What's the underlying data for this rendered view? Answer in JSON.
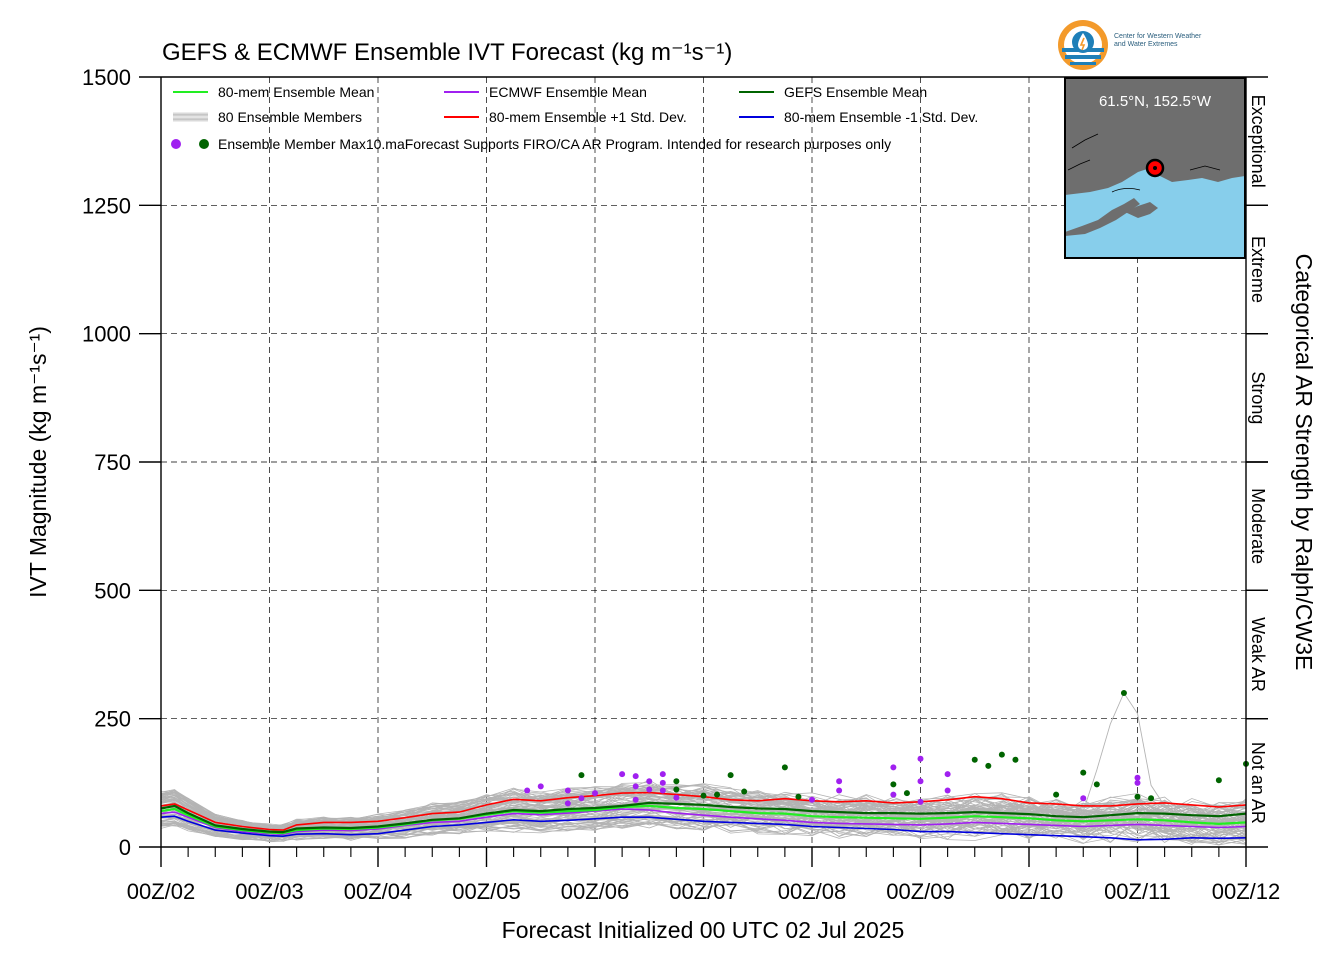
{
  "logo": {
    "line1": "Center for Western Weather",
    "line2": "and Water Extremes"
  },
  "inset": {
    "label": "61.5°N, 152.5°W",
    "land_color": "#6e6e6e",
    "ocean_color": "#87ceeb",
    "marker_color": "#ff0000"
  },
  "chart_data": {
    "type": "line",
    "title": "GEFS & ECMWF Ensemble IVT Forecast (kg m⁻¹s⁻¹)",
    "xlabel": "Forecast Initialized 00 UTC 02 Jul 2025",
    "ylabel": "IVT Magnitude (kg m⁻¹s⁻¹)",
    "right_label": "Categorical AR Strength by Ralph/CW3E",
    "ylim": [
      0,
      1500
    ],
    "yticks": [
      "0",
      "250",
      "500",
      "750",
      "1000",
      "1250",
      "1500"
    ],
    "xlim": [
      "00Z/02",
      "00Z/12"
    ],
    "xticks": [
      "00Z/02",
      "00Z/03",
      "00Z/04",
      "00Z/05",
      "00Z/06",
      "00Z/07",
      "00Z/08",
      "00Z/09",
      "00Z/10",
      "00Z/11",
      "00Z/12"
    ],
    "grid": true,
    "legend_position": "top-left",
    "categories": [
      {
        "label": "Not an AR",
        "range": [
          0,
          250
        ]
      },
      {
        "label": "Weak AR",
        "range": [
          250,
          500
        ]
      },
      {
        "label": "Moderate",
        "range": [
          500,
          750
        ]
      },
      {
        "label": "Strong",
        "range": [
          750,
          1000
        ]
      },
      {
        "label": "Extreme",
        "range": [
          1000,
          1250
        ]
      },
      {
        "label": "Exceptional",
        "range": [
          1250,
          1500
        ]
      }
    ],
    "legend": [
      {
        "label": "80-mem Ensemble Mean",
        "color": "#22ee22",
        "kind": "line"
      },
      {
        "label": "ECMWF Ensemble Mean",
        "color": "#a020f0",
        "kind": "line"
      },
      {
        "label": "GEFS Ensemble Mean",
        "color": "#006400",
        "kind": "line"
      },
      {
        "label": "80 Ensemble Members",
        "color": "#b4b4b4",
        "kind": "members"
      },
      {
        "label": "80-mem Ensemble +1 Std. Dev.",
        "color": "#ff0000",
        "kind": "line"
      },
      {
        "label": "80-mem Ensemble -1 Std. Dev.",
        "color": "#0000dd",
        "kind": "line"
      },
      {
        "label": "Ensemble Member Max10.maForecast Supports FIRO/CA AR Program. Intended for research purposes only",
        "color": "#a020f0",
        "color2": "#006400",
        "kind": "dots"
      }
    ],
    "series": [
      {
        "name": "80-mem Ensemble Mean",
        "color": "#22ee22",
        "width": 2.2,
        "x": [
          0,
          0.125,
          0.25,
          0.5,
          0.75,
          1.0,
          1.125,
          1.25,
          1.5,
          1.75,
          2.0,
          2.25,
          2.5,
          2.75,
          3.0,
          3.25,
          3.5,
          3.75,
          4.0,
          4.25,
          4.5,
          4.75,
          5.0,
          5.25,
          5.5,
          5.75,
          6.0,
          6.25,
          6.5,
          6.75,
          7.0,
          7.25,
          7.5,
          7.75,
          8.0,
          8.25,
          8.5,
          8.75,
          9.0,
          9.25,
          9.5,
          9.75,
          10.0
        ],
        "y": [
          70,
          74,
          62,
          40,
          33,
          28,
          27,
          33,
          36,
          35,
          38,
          44,
          52,
          55,
          63,
          70,
          67,
          70,
          72,
          78,
          80,
          76,
          74,
          70,
          66,
          65,
          60,
          58,
          57,
          56,
          55,
          57,
          60,
          58,
          56,
          52,
          50,
          52,
          54,
          52,
          48,
          45,
          48
        ]
      },
      {
        "name": "ECMWF Ensemble Mean",
        "color": "#a020f0",
        "width": 1.6,
        "x": [
          0,
          0.125,
          0.25,
          0.5,
          0.75,
          1.0,
          1.125,
          1.25,
          1.5,
          1.75,
          2.0,
          2.25,
          2.5,
          2.75,
          3.0,
          3.25,
          3.5,
          3.75,
          4.0,
          4.25,
          4.5,
          4.75,
          5.0,
          5.25,
          5.5,
          5.75,
          6.0,
          6.25,
          6.5,
          6.75,
          7.0,
          7.25,
          7.5,
          7.75,
          8.0,
          8.25,
          8.5,
          8.75,
          9.0,
          9.25,
          9.5,
          9.75,
          10.0
        ],
        "y": [
          65,
          68,
          58,
          38,
          30,
          26,
          25,
          30,
          33,
          32,
          35,
          42,
          48,
          50,
          58,
          65,
          63,
          66,
          70,
          74,
          72,
          66,
          62,
          58,
          55,
          52,
          48,
          46,
          45,
          44,
          43,
          45,
          48,
          46,
          44,
          42,
          40,
          42,
          44,
          42,
          40,
          38,
          40
        ]
      },
      {
        "name": "GEFS Ensemble Mean",
        "color": "#006400",
        "width": 2.2,
        "x": [
          0,
          0.125,
          0.25,
          0.5,
          0.75,
          1.0,
          1.125,
          1.25,
          1.5,
          1.75,
          2.0,
          2.25,
          2.5,
          2.75,
          3.0,
          3.25,
          3.5,
          3.75,
          4.0,
          4.25,
          4.5,
          4.75,
          5.0,
          5.25,
          5.5,
          5.75,
          6.0,
          6.25,
          6.5,
          6.75,
          7.0,
          7.25,
          7.5,
          7.75,
          8.0,
          8.25,
          8.5,
          8.75,
          9.0,
          9.25,
          9.5,
          9.75,
          10.0
        ],
        "y": [
          75,
          80,
          66,
          42,
          35,
          30,
          29,
          36,
          38,
          37,
          40,
          46,
          53,
          56,
          65,
          72,
          70,
          74,
          76,
          80,
          86,
          84,
          82,
          78,
          75,
          74,
          70,
          68,
          66,
          66,
          65,
          66,
          68,
          66,
          64,
          60,
          58,
          62,
          66,
          65,
          62,
          60,
          65
        ]
      },
      {
        "name": "80-mem Ensemble +1 Std. Dev.",
        "color": "#ff0000",
        "width": 1.6,
        "x": [
          0,
          0.125,
          0.25,
          0.5,
          0.75,
          1.0,
          1.125,
          1.25,
          1.5,
          1.75,
          2.0,
          2.25,
          2.5,
          2.75,
          3.0,
          3.25,
          3.5,
          3.75,
          4.0,
          4.25,
          4.5,
          4.75,
          5.0,
          5.25,
          5.5,
          5.75,
          6.0,
          6.25,
          6.5,
          6.75,
          7.0,
          7.25,
          7.5,
          7.75,
          8.0,
          8.25,
          8.5,
          8.75,
          9.0,
          9.25,
          9.5,
          9.75,
          10.0
        ],
        "y": [
          80,
          84,
          72,
          48,
          40,
          34,
          33,
          43,
          48,
          48,
          50,
          57,
          65,
          68,
          82,
          93,
          90,
          96,
          100,
          105,
          106,
          102,
          98,
          92,
          90,
          94,
          90,
          88,
          90,
          86,
          88,
          92,
          98,
          94,
          86,
          84,
          80,
          80,
          84,
          86,
          82,
          78,
          82
        ]
      },
      {
        "name": "80-mem Ensemble -1 Std. Dev.",
        "color": "#0000dd",
        "width": 1.6,
        "x": [
          0,
          0.125,
          0.25,
          0.5,
          0.75,
          1.0,
          1.125,
          1.25,
          1.5,
          1.75,
          2.0,
          2.25,
          2.5,
          2.75,
          3.0,
          3.25,
          3.5,
          3.75,
          4.0,
          4.25,
          4.5,
          4.75,
          5.0,
          5.25,
          5.5,
          5.75,
          6.0,
          6.25,
          6.5,
          6.75,
          7.0,
          7.25,
          7.5,
          7.75,
          8.0,
          8.25,
          8.5,
          8.75,
          9.0,
          9.25,
          9.5,
          9.75,
          10.0
        ],
        "y": [
          58,
          60,
          50,
          33,
          27,
          22,
          21,
          25,
          26,
          24,
          26,
          33,
          40,
          43,
          48,
          53,
          50,
          52,
          55,
          58,
          58,
          54,
          50,
          48,
          46,
          44,
          40,
          38,
          36,
          34,
          30,
          30,
          28,
          26,
          24,
          22,
          20,
          18,
          14,
          15,
          18,
          17,
          18
        ]
      }
    ],
    "members_shape": {
      "x": [
        0,
        0.125,
        0.25,
        0.5,
        0.75,
        1.0,
        1.125,
        1.25,
        1.5,
        1.75,
        2.0,
        2.25,
        2.5,
        2.75,
        3.0,
        3.25,
        3.5,
        3.75,
        4.0,
        4.25,
        4.5,
        4.75,
        5.0,
        5.25,
        5.5,
        5.75,
        6.0,
        6.25,
        6.5,
        6.75,
        7.0,
        7.25,
        7.5,
        7.75,
        8.0,
        8.25,
        8.5,
        8.75,
        9.0,
        9.25,
        9.5,
        9.75,
        10.0
      ],
      "count": 80
    },
    "spike_member": {
      "x": [
        8.5,
        8.625,
        8.75,
        8.875,
        9.0,
        9.125,
        9.25
      ],
      "y": [
        70,
        150,
        240,
        300,
        260,
        120,
        80
      ]
    },
    "max_points": [
      {
        "x": 3.375,
        "y": 110,
        "color": "#a020f0"
      },
      {
        "x": 3.5,
        "y": 118,
        "color": "#a020f0"
      },
      {
        "x": 3.75,
        "y": 110,
        "color": "#a020f0"
      },
      {
        "x": 3.875,
        "y": 140,
        "color": "#006400"
      },
      {
        "x": 3.75,
        "y": 85,
        "color": "#a020f0"
      },
      {
        "x": 3.875,
        "y": 95,
        "color": "#a020f0"
      },
      {
        "x": 4.0,
        "y": 105,
        "color": "#a020f0"
      },
      {
        "x": 4.25,
        "y": 142,
        "color": "#a020f0"
      },
      {
        "x": 4.375,
        "y": 138,
        "color": "#a020f0"
      },
      {
        "x": 4.375,
        "y": 118,
        "color": "#a020f0"
      },
      {
        "x": 4.5,
        "y": 128,
        "color": "#a020f0"
      },
      {
        "x": 4.5,
        "y": 112,
        "color": "#a020f0"
      },
      {
        "x": 4.625,
        "y": 142,
        "color": "#a020f0"
      },
      {
        "x": 4.625,
        "y": 125,
        "color": "#a020f0"
      },
      {
        "x": 4.625,
        "y": 110,
        "color": "#a020f0"
      },
      {
        "x": 4.375,
        "y": 92,
        "color": "#a020f0"
      },
      {
        "x": 4.75,
        "y": 128,
        "color": "#006400"
      },
      {
        "x": 4.75,
        "y": 112,
        "color": "#006400"
      },
      {
        "x": 4.75,
        "y": 96,
        "color": "#a020f0"
      },
      {
        "x": 5.0,
        "y": 100,
        "color": "#006400"
      },
      {
        "x": 5.125,
        "y": 102,
        "color": "#006400"
      },
      {
        "x": 5.25,
        "y": 140,
        "color": "#006400"
      },
      {
        "x": 5.375,
        "y": 108,
        "color": "#006400"
      },
      {
        "x": 5.75,
        "y": 155,
        "color": "#006400"
      },
      {
        "x": 5.875,
        "y": 98,
        "color": "#006400"
      },
      {
        "x": 6.0,
        "y": 92,
        "color": "#a020f0"
      },
      {
        "x": 6.25,
        "y": 128,
        "color": "#a020f0"
      },
      {
        "x": 6.25,
        "y": 110,
        "color": "#a020f0"
      },
      {
        "x": 6.75,
        "y": 155,
        "color": "#a020f0"
      },
      {
        "x": 6.75,
        "y": 122,
        "color": "#006400"
      },
      {
        "x": 6.75,
        "y": 102,
        "color": "#a020f0"
      },
      {
        "x": 6.875,
        "y": 105,
        "color": "#006400"
      },
      {
        "x": 7.0,
        "y": 172,
        "color": "#a020f0"
      },
      {
        "x": 7.0,
        "y": 128,
        "color": "#a020f0"
      },
      {
        "x": 7.0,
        "y": 88,
        "color": "#a020f0"
      },
      {
        "x": 7.25,
        "y": 142,
        "color": "#a020f0"
      },
      {
        "x": 7.25,
        "y": 110,
        "color": "#a020f0"
      },
      {
        "x": 7.5,
        "y": 170,
        "color": "#006400"
      },
      {
        "x": 7.625,
        "y": 158,
        "color": "#006400"
      },
      {
        "x": 7.75,
        "y": 180,
        "color": "#006400"
      },
      {
        "x": 7.875,
        "y": 170,
        "color": "#006400"
      },
      {
        "x": 8.25,
        "y": 102,
        "color": "#006400"
      },
      {
        "x": 8.5,
        "y": 145,
        "color": "#006400"
      },
      {
        "x": 8.5,
        "y": 95,
        "color": "#a020f0"
      },
      {
        "x": 8.625,
        "y": 122,
        "color": "#006400"
      },
      {
        "x": 8.875,
        "y": 300,
        "color": "#006400"
      },
      {
        "x": 9.0,
        "y": 135,
        "color": "#a020f0"
      },
      {
        "x": 9.0,
        "y": 125,
        "color": "#a020f0"
      },
      {
        "x": 9.0,
        "y": 98,
        "color": "#006400"
      },
      {
        "x": 9.125,
        "y": 95,
        "color": "#006400"
      },
      {
        "x": 9.75,
        "y": 130,
        "color": "#006400"
      },
      {
        "x": 10.0,
        "y": 162,
        "color": "#006400"
      }
    ]
  }
}
